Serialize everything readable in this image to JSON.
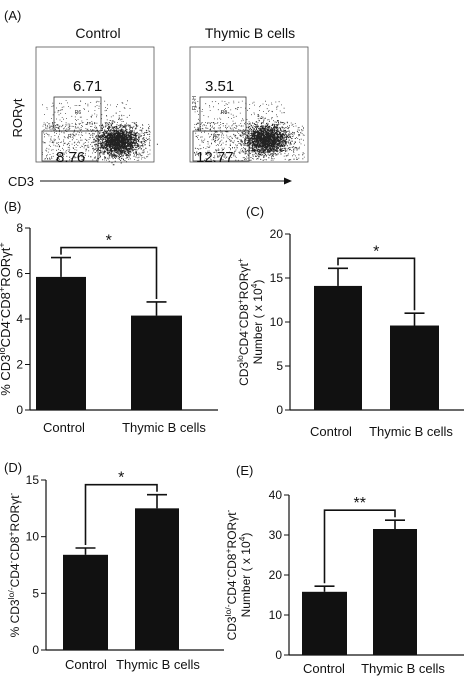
{
  "panels": {
    "A": {
      "letter": "(A)",
      "plots": [
        {
          "title": "Control",
          "upper_gate": "6.71",
          "lower_gate": "8.76",
          "gate_tag_upper": "R6",
          "gate_tag_lower": "R7"
        },
        {
          "title": "Thymic B cells",
          "upper_gate": "3.51",
          "lower_gate": "12.77",
          "gate_tag_upper": "R6",
          "gate_tag_lower": "R7",
          "side_tag": "FL2-H"
        }
      ],
      "y_axis_label": "RORγt",
      "x_axis_label": "CD3"
    },
    "B": {
      "letter": "(B)"
    },
    "C": {
      "letter": "(C)"
    },
    "D": {
      "letter": "(D)"
    },
    "E": {
      "letter": "(E)"
    }
  },
  "chart_data": [
    {
      "id": "B",
      "type": "bar",
      "categories": [
        "Control",
        "Thymic B cells"
      ],
      "values": [
        5.85,
        4.15
      ],
      "errors": [
        0.85,
        0.6
      ],
      "ylim": [
        0,
        8
      ],
      "yticks": [
        "0",
        "2",
        "4",
        "6",
        "8"
      ],
      "ylabel": "% CD3loCD4-CD8+RORγt+",
      "significance": "*"
    },
    {
      "id": "C",
      "type": "bar",
      "categories": [
        "Control",
        "Thymic B cells"
      ],
      "values": [
        14.1,
        9.6
      ],
      "errors": [
        2.0,
        1.4
      ],
      "ylim": [
        0,
        20
      ],
      "yticks": [
        "0",
        "5",
        "10",
        "15",
        "20"
      ],
      "ylabel": "CD3loCD4-CD8+RORγt+",
      "ylabel2": "Number ( x 104)",
      "significance": "*"
    },
    {
      "id": "D",
      "type": "bar",
      "categories": [
        "Control",
        "Thymic B cells"
      ],
      "values": [
        8.4,
        12.5
      ],
      "errors": [
        0.6,
        1.2
      ],
      "ylim": [
        0,
        15
      ],
      "yticks": [
        "0",
        "5",
        "10",
        "15"
      ],
      "ylabel": "% CD3lo/-CD4-CD8+RORγt-",
      "significance": "*"
    },
    {
      "id": "E",
      "type": "bar",
      "categories": [
        "Control",
        "Thymic B cells"
      ],
      "values": [
        15.8,
        31.5
      ],
      "errors": [
        1.4,
        2.2
      ],
      "ylim": [
        0,
        40
      ],
      "yticks": [
        "0",
        "10",
        "20",
        "30",
        "40"
      ],
      "ylabel": "CD3lo/-CD4-CD8+RORγt-",
      "ylabel2": "Number ( x 104)",
      "significance": "**"
    }
  ]
}
